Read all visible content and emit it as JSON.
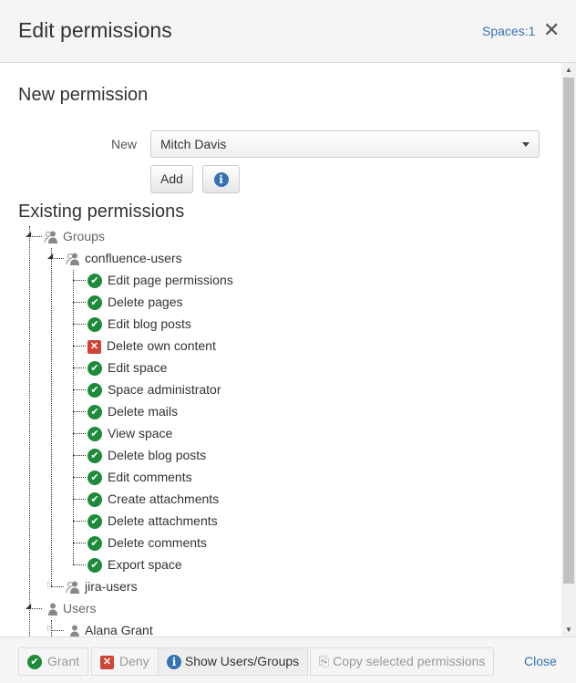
{
  "header": {
    "title": "Edit permissions",
    "spaces_link": "Spaces:1",
    "close_icon": "close-icon"
  },
  "new_permission": {
    "heading": "New permission",
    "label": "New",
    "selected": "Mitch Davis",
    "add_label": "Add",
    "info_icon": "info-icon"
  },
  "existing": {
    "heading": "Existing permissions",
    "groups_label": "Groups",
    "group1": {
      "name": "confluence-users",
      "permissions": [
        {
          "label": "Edit page permissions",
          "granted": true
        },
        {
          "label": "Delete pages",
          "granted": true
        },
        {
          "label": "Edit blog posts",
          "granted": true
        },
        {
          "label": "Delete own content",
          "granted": false
        },
        {
          "label": "Edit space",
          "granted": true
        },
        {
          "label": "Space administrator",
          "granted": true
        },
        {
          "label": "Delete mails",
          "granted": true
        },
        {
          "label": "View space",
          "granted": true
        },
        {
          "label": "Delete blog posts",
          "granted": true
        },
        {
          "label": "Edit comments",
          "granted": true
        },
        {
          "label": "Create attachments",
          "granted": true
        },
        {
          "label": "Delete attachments",
          "granted": true
        },
        {
          "label": "Delete comments",
          "granted": true
        },
        {
          "label": "Export space",
          "granted": true
        }
      ]
    },
    "group2": {
      "name": "jira-users"
    },
    "users_label": "Users",
    "user1": {
      "name": "Alana Grant"
    }
  },
  "footer": {
    "grant": "Grant",
    "deny": "Deny",
    "show": "Show Users/Groups",
    "copy": "Copy selected permissions",
    "close": "Close"
  },
  "colors": {
    "accent": "#3572b0",
    "granted": "#1e8b3a",
    "denied": "#d04437"
  }
}
